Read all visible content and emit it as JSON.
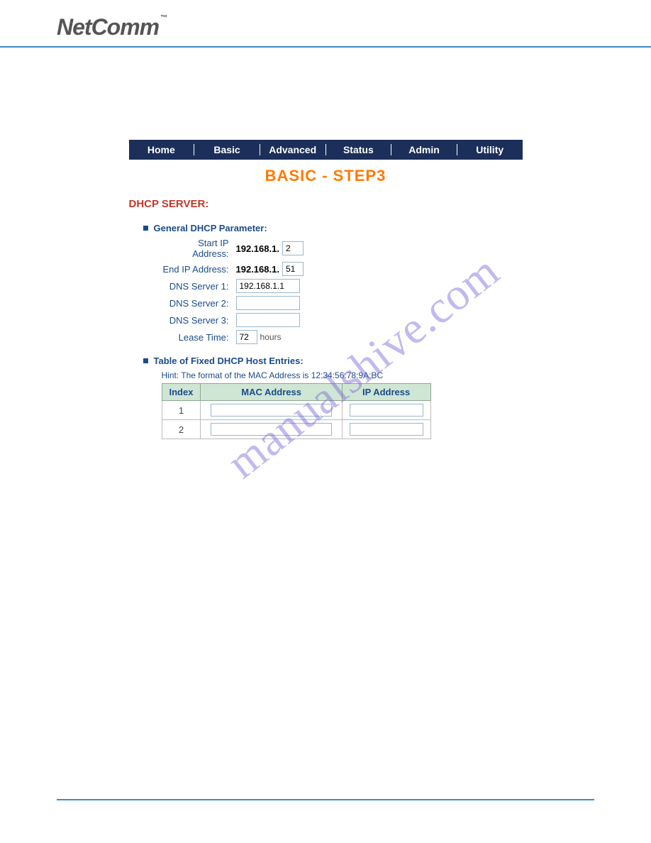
{
  "brand": {
    "name": "NetComm",
    "tm": "™"
  },
  "nav": {
    "items": [
      "Home",
      "Basic",
      "Advanced",
      "Status",
      "Admin",
      "Utility"
    ]
  },
  "page": {
    "title": "BASIC - STEP3"
  },
  "dhcp": {
    "section_title": "DHCP SERVER:",
    "general_heading": "General DHCP Parameter:",
    "labels": {
      "start_ip": "Start IP Address:",
      "end_ip": "End IP Address:",
      "dns1": "DNS Server 1:",
      "dns2": "DNS Server 2:",
      "dns3": "DNS Server 3:",
      "lease": "Lease Time:"
    },
    "ip_prefix": "192.168.1.",
    "start_ip_last": "2",
    "end_ip_last": "51",
    "dns1": "192.168.1.1",
    "dns2": "",
    "dns3": "",
    "lease": "72",
    "lease_unit": "hours",
    "fixed_heading": "Table of Fixed DHCP Host Entries:",
    "hint": "Hint: The format of the MAC Address is 12:34:56:78:9A:BC",
    "table_headers": {
      "index": "Index",
      "mac": "MAC Address",
      "ip": "IP Address"
    },
    "rows": [
      {
        "index": "1",
        "mac": "",
        "ip": ""
      },
      {
        "index": "2",
        "mac": "",
        "ip": ""
      }
    ]
  },
  "watermark": "manualshive.com",
  "colors": {
    "nav_bg": "#1b2f5a",
    "nav_text": "#ffffff",
    "title": "#ff7a00",
    "section": "#c0392b",
    "sub_heading": "#1b4b8a",
    "table_header_bg": "#cfe6d4",
    "border_blue": "#3a8cc4"
  }
}
